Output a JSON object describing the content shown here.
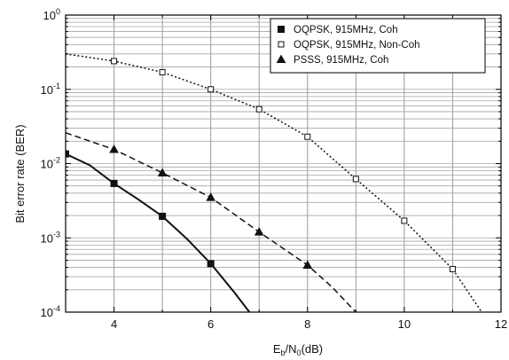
{
  "chart_data": {
    "type": "line",
    "title": "",
    "xlabel": "E_b/N_0(dB)",
    "xlabel_parts": {
      "main1": "E",
      "sub1": "b",
      "sep": "/N",
      "sub2": "0",
      "tail": "(dB)"
    },
    "ylabel": "Bit error rate (BER)",
    "xlim": [
      3,
      12
    ],
    "ylim": [
      0.0001,
      1
    ],
    "yscale": "log",
    "grid": true,
    "legend_position": "top-right",
    "x_ticks": [
      {
        "value": 4,
        "label": "4"
      },
      {
        "value": 6,
        "label": "6"
      },
      {
        "value": 8,
        "label": "8"
      },
      {
        "value": 10,
        "label": "10"
      },
      {
        "value": 12,
        "label": "12"
      }
    ],
    "y_ticks": [
      {
        "value": 0.0001,
        "base": "10",
        "exp": "-4"
      },
      {
        "value": 0.001,
        "base": "10",
        "exp": "-3"
      },
      {
        "value": 0.01,
        "base": "10",
        "exp": "-2"
      },
      {
        "value": 0.1,
        "base": "10",
        "exp": "-1"
      },
      {
        "value": 1,
        "base": "10",
        "exp": "0"
      }
    ],
    "series": [
      {
        "name": "OQPSK, 915MHz, Coh",
        "line_style": "solid",
        "marker": "filled-square",
        "curve": [
          [
            3,
            0.0135
          ],
          [
            3.5,
            0.0095
          ],
          [
            4,
            0.0054
          ],
          [
            4.5,
            0.0033
          ],
          [
            5,
            0.00195
          ],
          [
            5.5,
            0.00098
          ],
          [
            6,
            0.00045
          ],
          [
            6.5,
            0.00018
          ],
          [
            6.8,
            0.0001
          ]
        ],
        "markers": [
          [
            3,
            0.0135
          ],
          [
            4,
            0.0054
          ],
          [
            5,
            0.00195
          ],
          [
            6,
            0.00045
          ]
        ]
      },
      {
        "name": "OQPSK, 915MHz, Non-Coh",
        "line_style": "dotted",
        "marker": "open-square",
        "curve": [
          [
            3,
            0.3
          ],
          [
            4,
            0.24
          ],
          [
            5,
            0.17
          ],
          [
            6,
            0.1
          ],
          [
            7,
            0.054
          ],
          [
            8,
            0.023
          ],
          [
            9,
            0.0062
          ],
          [
            10,
            0.0017
          ],
          [
            11,
            0.00038
          ],
          [
            11.6,
            0.0001
          ]
        ],
        "markers": [
          [
            4,
            0.24
          ],
          [
            5,
            0.17
          ],
          [
            6,
            0.1
          ],
          [
            7,
            0.054
          ],
          [
            8,
            0.023
          ],
          [
            9,
            0.0062
          ],
          [
            10,
            0.0017
          ],
          [
            11,
            0.00038
          ]
        ]
      },
      {
        "name": "PSSS, 915MHz, Coh",
        "line_style": "dashed",
        "marker": "filled-triangle",
        "curve": [
          [
            3,
            0.026
          ],
          [
            4,
            0.0155
          ],
          [
            5,
            0.0075
          ],
          [
            6,
            0.0035
          ],
          [
            7,
            0.0012
          ],
          [
            8,
            0.00043
          ],
          [
            8.5,
            0.00022
          ],
          [
            9,
            0.0001
          ]
        ],
        "markers": [
          [
            4,
            0.0155
          ],
          [
            5,
            0.0075
          ],
          [
            6,
            0.0035
          ],
          [
            7,
            0.0012
          ],
          [
            8,
            0.00043
          ]
        ]
      }
    ]
  }
}
